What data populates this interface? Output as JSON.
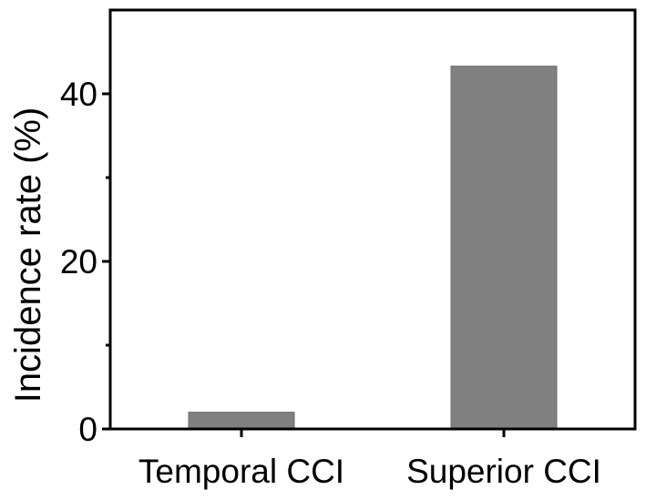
{
  "chart_data": {
    "type": "bar",
    "categories": [
      "Temporal CCI",
      "Superior CCI"
    ],
    "values": [
      2,
      43.3
    ],
    "title": "",
    "xlabel": "",
    "ylabel": "Incidence rate (%)",
    "ylim": [
      0,
      50
    ],
    "yticks": [
      0,
      20,
      40
    ],
    "ytick_labels": [
      "0",
      "20",
      "40"
    ],
    "minor_yticks": [
      10,
      30
    ],
    "grid": false,
    "legend": "none",
    "colors": {
      "bar": "#808080",
      "bar_edge": "#6e6e6e",
      "axis": "#000000",
      "background": "#ffffff"
    }
  }
}
